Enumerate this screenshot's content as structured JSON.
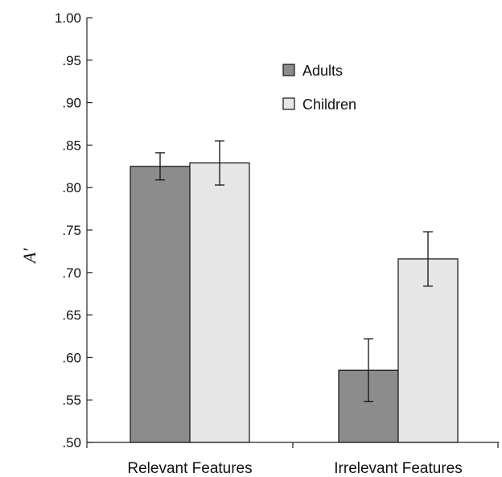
{
  "chart_data": {
    "type": "bar",
    "title": "",
    "xlabel": "",
    "ylabel": "A′",
    "ylim": [
      0.5,
      1.0
    ],
    "yticks": [
      0.5,
      0.55,
      0.6,
      0.65,
      0.7,
      0.75,
      0.8,
      0.85,
      0.9,
      0.95,
      1.0
    ],
    "ytick_labels": [
      ".50",
      ".55",
      ".60",
      ".65",
      ".70",
      ".75",
      ".80",
      ".85",
      ".90",
      ".95",
      "1.00"
    ],
    "categories": [
      "Relevant Features",
      "Irrelevant Features"
    ],
    "series": [
      {
        "name": "Adults",
        "color": "#8c8c8c",
        "values": [
          0.825,
          0.585
        ],
        "error": [
          0.016,
          0.037
        ]
      },
      {
        "name": "Children",
        "color": "#e6e6e6",
        "values": [
          0.829,
          0.716
        ],
        "error": [
          0.026,
          0.032
        ]
      }
    ],
    "error_bars": true,
    "grid": false,
    "legend_position": "top-right"
  }
}
